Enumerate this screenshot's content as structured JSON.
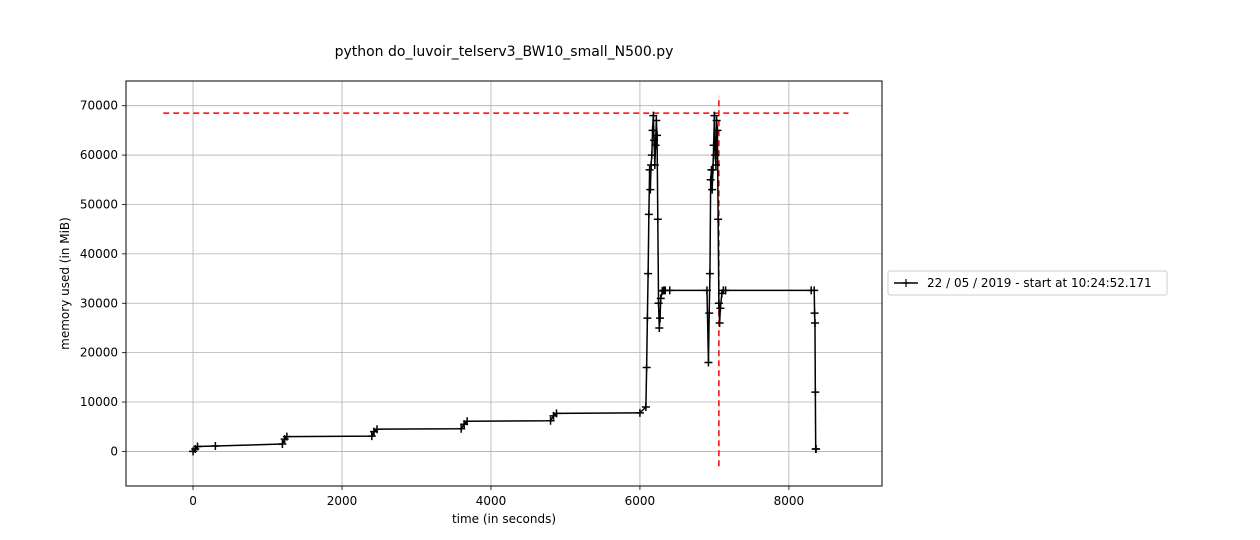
{
  "chart_data": {
    "type": "line",
    "title": "python do_luvoir_telserv3_BW10_small_N500.py",
    "xlabel": "time (in seconds)",
    "ylabel": "memory used (in MiB)",
    "xlim": [
      -900,
      9250
    ],
    "ylim": [
      -7000,
      75000
    ],
    "xticks": [
      0,
      2000,
      4000,
      6000,
      8000
    ],
    "yticks": [
      0,
      10000,
      20000,
      30000,
      40000,
      50000,
      60000,
      70000
    ],
    "grid": true,
    "legend_position": "right",
    "series": [
      {
        "name": "22 / 05 / 2019 - start at 10:24:52.171",
        "color": "#000000",
        "marker": "+",
        "x": [
          0,
          30,
          60,
          300,
          1200,
          1230,
          1260,
          2400,
          2430,
          2470,
          3600,
          3640,
          3680,
          4800,
          4840,
          4880,
          6000,
          6080,
          6090,
          6100,
          6110,
          6120,
          6130,
          6140,
          6150,
          6160,
          6170,
          6180,
          6190,
          6200,
          6210,
          6220,
          6230,
          6240,
          6250,
          6260,
          6270,
          6280,
          6300,
          6320,
          6340,
          6400,
          6900,
          6920,
          6930,
          6940,
          6950,
          6960,
          6970,
          6980,
          6990,
          7000,
          7010,
          7020,
          7030,
          7040,
          7050,
          7060,
          7070,
          7080,
          7100,
          7120,
          7150,
          8300,
          8340,
          8345,
          8350,
          8355,
          8360,
          8365
        ],
        "y": [
          0,
          500,
          1000,
          1100,
          1500,
          2500,
          3000,
          3100,
          4000,
          4500,
          4600,
          5500,
          6100,
          6200,
          7200,
          7700,
          7800,
          9000,
          17000,
          27000,
          36000,
          48000,
          57000,
          53000,
          58000,
          60000,
          65000,
          68000,
          63000,
          58000,
          62000,
          67000,
          64000,
          47000,
          30000,
          25000,
          27000,
          31000,
          32500,
          32600,
          32600,
          32600,
          32600,
          18000,
          28000,
          36000,
          55000,
          57000,
          53000,
          57000,
          62000,
          68000,
          60000,
          58000,
          67000,
          65000,
          47000,
          30000,
          26000,
          29000,
          32000,
          32600,
          32600,
          32600,
          32600,
          28000,
          26000,
          12000,
          500,
          500
        ]
      }
    ],
    "annotations": [
      {
        "type": "hline",
        "y": 68500,
        "x_from": -400,
        "x_to": 8800,
        "color": "#ff0000",
        "style": "dashed"
      },
      {
        "type": "vline",
        "x": 7060,
        "y_from": -3000,
        "y_to": 72000,
        "color": "#ff0000",
        "style": "dashed"
      }
    ]
  }
}
